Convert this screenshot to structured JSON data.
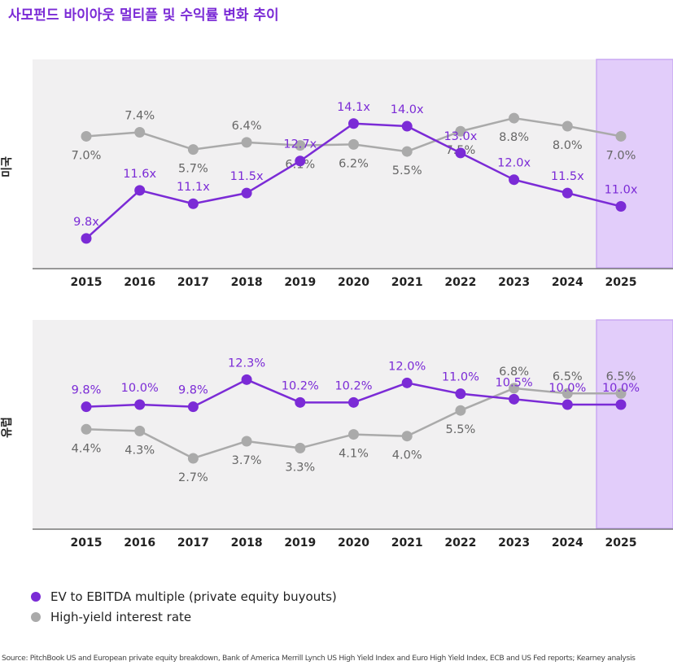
{
  "title": "사모펀드 바이아웃 멀티플 및 수익률 변화 추이",
  "colors": {
    "primary": "#7b2bd6",
    "secondary": "#aaaaaa",
    "panel_bg": "#f1f0f1",
    "highlight_bg": "#e2cdfa",
    "highlight_border": "#c9a8f2",
    "axis": "#777777"
  },
  "legend": {
    "items": [
      {
        "label": "EV to EBITDA multiple (private equity buyouts)",
        "color": "#7b2bd6"
      },
      {
        "label": "High-yield interest rate",
        "color": "#aaaaaa"
      }
    ]
  },
  "source": "Source: PitchBook US and European private equity breakdown, Bank of America Merrill Lynch US High Yield Index and Euro High Yield Index, ECB and US Fed reports; Kearney analysis",
  "chart_data": [
    {
      "type": "line",
      "panel_label": "미국",
      "x": [
        "2015",
        "2016",
        "2017",
        "2018",
        "2019",
        "2020",
        "2021",
        "2022",
        "2023",
        "2024",
        "2025"
      ],
      "highlight_category": "2025",
      "grid": false,
      "series": [
        {
          "name": "EV to EBITDA multiple (private equity buyouts)",
          "color": "#7b2bd6",
          "values": [
            9.8,
            11.6,
            11.1,
            11.5,
            12.7,
            14.1,
            14.0,
            13.0,
            12.0,
            11.5,
            11.0
          ],
          "labels": [
            "9.8x",
            "11.6x",
            "11.1x",
            "11.5x",
            "12.7x",
            "14.1x",
            "14.0x",
            "13.0x",
            "12.0x",
            "11.5x",
            "11.0x"
          ],
          "ylim": [
            8.7,
            16.5
          ]
        },
        {
          "name": "High-yield interest rate",
          "color": "#aaaaaa",
          "values": [
            7.0,
            7.4,
            5.7,
            6.4,
            6.1,
            6.2,
            5.5,
            7.5,
            8.8,
            8.0,
            7.0
          ],
          "labels": [
            "7.0%",
            "7.4%",
            "5.7%",
            "6.4%",
            "6.1%",
            "6.2%",
            "5.5%",
            "7.5%",
            "8.8%",
            "8.0%",
            "7.0%"
          ],
          "ylim": [
            -6.0,
            14.6
          ]
        }
      ]
    },
    {
      "type": "line",
      "panel_label": "유럽",
      "x": [
        "2015",
        "2016",
        "2017",
        "2018",
        "2019",
        "2020",
        "2021",
        "2022",
        "2023",
        "2024",
        "2025"
      ],
      "highlight_category": "2025",
      "grid": false,
      "series": [
        {
          "name": "EV to EBITDA multiple (private equity buyouts)",
          "color": "#7b2bd6",
          "values": [
            9.8,
            10.0,
            9.8,
            12.3,
            10.2,
            10.2,
            12.0,
            11.0,
            10.5,
            10.0,
            10.0
          ],
          "labels": [
            "9.8%",
            "10.0%",
            "9.8%",
            "12.3%",
            "10.2%",
            "10.2%",
            "12.0%",
            "11.0%",
            "10.5%",
            "10.0%",
            "10.0%"
          ],
          "ylim": [
            -1.4,
            17.8
          ]
        },
        {
          "name": "High-yield interest rate",
          "color": "#aaaaaa",
          "values": [
            4.4,
            4.3,
            2.7,
            3.7,
            3.3,
            4.1,
            4.0,
            5.5,
            6.8,
            6.5,
            6.5
          ],
          "labels": [
            "4.4%",
            "4.3%",
            "2.7%",
            "3.7%",
            "3.3%",
            "4.1%",
            "4.0%",
            "5.5%",
            "6.8%",
            "6.5%",
            "6.5%"
          ],
          "ylim": [
            -1.4,
            10.8
          ]
        }
      ]
    }
  ]
}
